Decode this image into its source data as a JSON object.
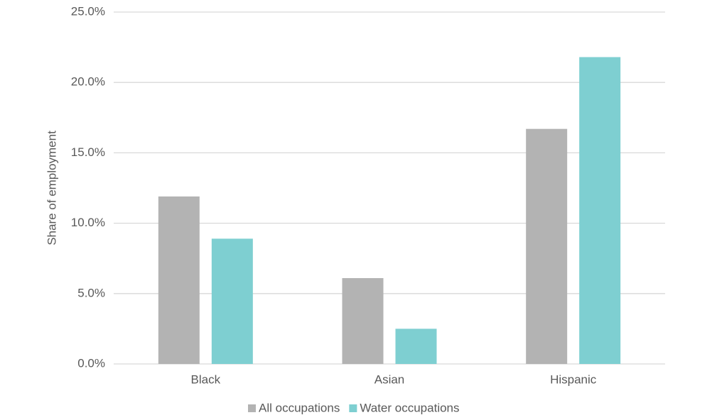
{
  "chart_data": {
    "type": "bar",
    "y_axis_label": "Share of employment",
    "categories": [
      "Black",
      "Asian",
      "Hispanic"
    ],
    "series": [
      {
        "name": "All occupations",
        "color": "#b3b3b3",
        "values": [
          11.9,
          6.1,
          16.7
        ]
      },
      {
        "name": "Water occupations",
        "color": "#7ecfd1",
        "values": [
          8.9,
          2.5,
          21.8
        ]
      }
    ],
    "ylim": [
      0,
      25
    ],
    "yticks": [
      {
        "value": 0,
        "label": "0.0%"
      },
      {
        "value": 5,
        "label": "5.0%"
      },
      {
        "value": 10,
        "label": "10.0%"
      },
      {
        "value": 15,
        "label": "15.0%"
      },
      {
        "value": 20,
        "label": "20.0%"
      },
      {
        "value": 25,
        "label": "25.0%"
      }
    ],
    "grid": true,
    "legend": "bottom"
  }
}
